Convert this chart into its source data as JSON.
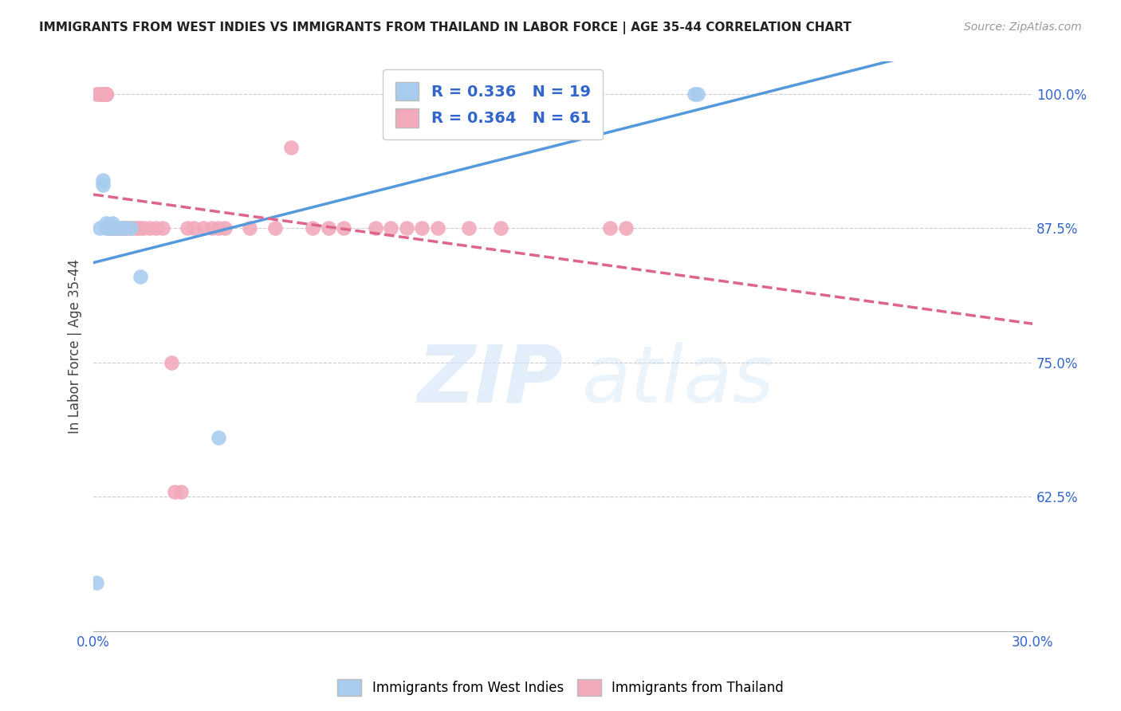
{
  "title": "IMMIGRANTS FROM WEST INDIES VS IMMIGRANTS FROM THAILAND IN LABOR FORCE | AGE 35-44 CORRELATION CHART",
  "source": "Source: ZipAtlas.com",
  "ylabel": "In Labor Force | Age 35-44",
  "xlim": [
    0.0,
    0.3
  ],
  "ylim": [
    0.5,
    1.03
  ],
  "yticks": [
    0.625,
    0.75,
    0.875,
    1.0
  ],
  "ytick_labels": [
    "62.5%",
    "75.0%",
    "87.5%",
    "100.0%"
  ],
  "blue_R": 0.336,
  "blue_N": 19,
  "pink_R": 0.364,
  "pink_N": 61,
  "blue_color": "#A8CCEE",
  "pink_color": "#F2AABB",
  "blue_line_color": "#5599DD",
  "pink_line_color": "#DD6688",
  "legend_text_color": "#3366CC",
  "background_color": "#FFFFFF",
  "blue_x": [
    0.001,
    0.002,
    0.003,
    0.003,
    0.004,
    0.004,
    0.005,
    0.005,
    0.006,
    0.006,
    0.007,
    0.008,
    0.009,
    0.01,
    0.012,
    0.015,
    0.04,
    0.192,
    0.193
  ],
  "blue_y": [
    0.545,
    0.875,
    0.92,
    0.915,
    0.875,
    0.88,
    0.875,
    0.878,
    0.875,
    0.88,
    0.875,
    0.875,
    0.875,
    0.875,
    0.875,
    0.83,
    0.68,
    1.0,
    1.0
  ],
  "pink_x": [
    0.001,
    0.002,
    0.002,
    0.003,
    0.003,
    0.003,
    0.003,
    0.004,
    0.004,
    0.004,
    0.004,
    0.004,
    0.004,
    0.005,
    0.005,
    0.005,
    0.005,
    0.006,
    0.006,
    0.006,
    0.007,
    0.007,
    0.008,
    0.008,
    0.009,
    0.009,
    0.01,
    0.01,
    0.011,
    0.012,
    0.013,
    0.014,
    0.015,
    0.016,
    0.018,
    0.02,
    0.022,
    0.025,
    0.026,
    0.028,
    0.03,
    0.032,
    0.035,
    0.038,
    0.04,
    0.042,
    0.05,
    0.058,
    0.063,
    0.07,
    0.075,
    0.08,
    0.09,
    0.095,
    0.1,
    0.105,
    0.11,
    0.12,
    0.13,
    0.165,
    0.17
  ],
  "pink_y": [
    1.0,
    1.0,
    1.0,
    1.0,
    1.0,
    1.0,
    1.0,
    1.0,
    1.0,
    1.0,
    1.0,
    1.0,
    1.0,
    0.875,
    0.875,
    0.875,
    0.875,
    0.875,
    0.875,
    0.875,
    0.875,
    0.875,
    0.875,
    0.875,
    0.875,
    0.875,
    0.875,
    0.875,
    0.875,
    0.875,
    0.875,
    0.875,
    0.875,
    0.875,
    0.875,
    0.875,
    0.875,
    0.75,
    0.63,
    0.63,
    0.875,
    0.875,
    0.875,
    0.875,
    0.875,
    0.875,
    0.875,
    0.875,
    0.95,
    0.875,
    0.875,
    0.875,
    0.875,
    0.875,
    0.875,
    0.875,
    0.875,
    0.875,
    0.875,
    0.875,
    0.875
  ]
}
